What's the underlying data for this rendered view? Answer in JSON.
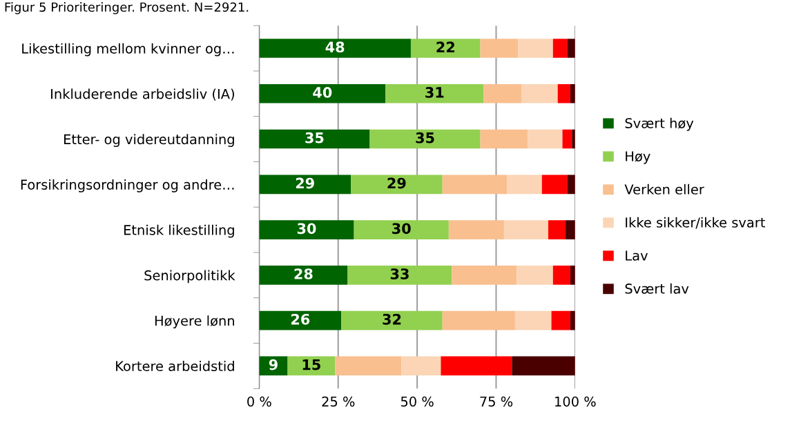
{
  "chart_data": {
    "type": "bar",
    "orientation": "horizontal",
    "stacked": true,
    "title": "Figur 5 Prioriteringer. Prosent. N=2921.",
    "categories": [
      "Likestilling mellom kvinner og…",
      "Inkluderende arbeidsliv (IA)",
      "Etter- og videreutdanning",
      "Forsikringsordninger og andre…",
      "Etnisk likestilling",
      "Seniorpolitikk",
      "Høyere lønn",
      "Kortere arbeidstid"
    ],
    "series": [
      {
        "name": "Svært høy",
        "color": "#006400",
        "values": [
          48,
          40,
          35,
          29,
          30,
          28,
          26,
          9
        ],
        "value_labels": [
          "48",
          "40",
          "35",
          "29",
          "30",
          "28",
          "26",
          "9"
        ]
      },
      {
        "name": "Høy",
        "color": "#92d050",
        "values": [
          22,
          31,
          35,
          29,
          30,
          33,
          32,
          15
        ],
        "value_labels": [
          "22",
          "31",
          "35",
          "29",
          "30",
          "33",
          "32",
          "15"
        ]
      },
      {
        "name": "Verken eller",
        "color": "#f9bf8f",
        "values": [
          12,
          12,
          15,
          20.5,
          17.5,
          20.5,
          23,
          21
        ]
      },
      {
        "name": "Ikke sikker/ikke svart",
        "color": "#fbd5b5",
        "values": [
          11,
          11.5,
          11,
          11,
          14,
          11.5,
          11.5,
          12.5
        ]
      },
      {
        "name": "Lav",
        "color": "#ff0000",
        "values": [
          4.5,
          4,
          3,
          8,
          5.5,
          5.5,
          6,
          22.5
        ]
      },
      {
        "name": "Svært lav",
        "color": "#4b0000",
        "values": [
          2.5,
          1.5,
          1,
          2.5,
          3,
          1.5,
          1.5,
          20
        ]
      }
    ],
    "xlim": [
      0,
      100
    ],
    "xticks": [
      {
        "value": 0,
        "label": "0 %"
      },
      {
        "value": 25,
        "label": "25 %"
      },
      {
        "value": 50,
        "label": "50 %"
      },
      {
        "value": 75,
        "label": "75 %"
      },
      {
        "value": 100,
        "label": "100 %"
      }
    ],
    "grid": "x",
    "legend": "right"
  }
}
